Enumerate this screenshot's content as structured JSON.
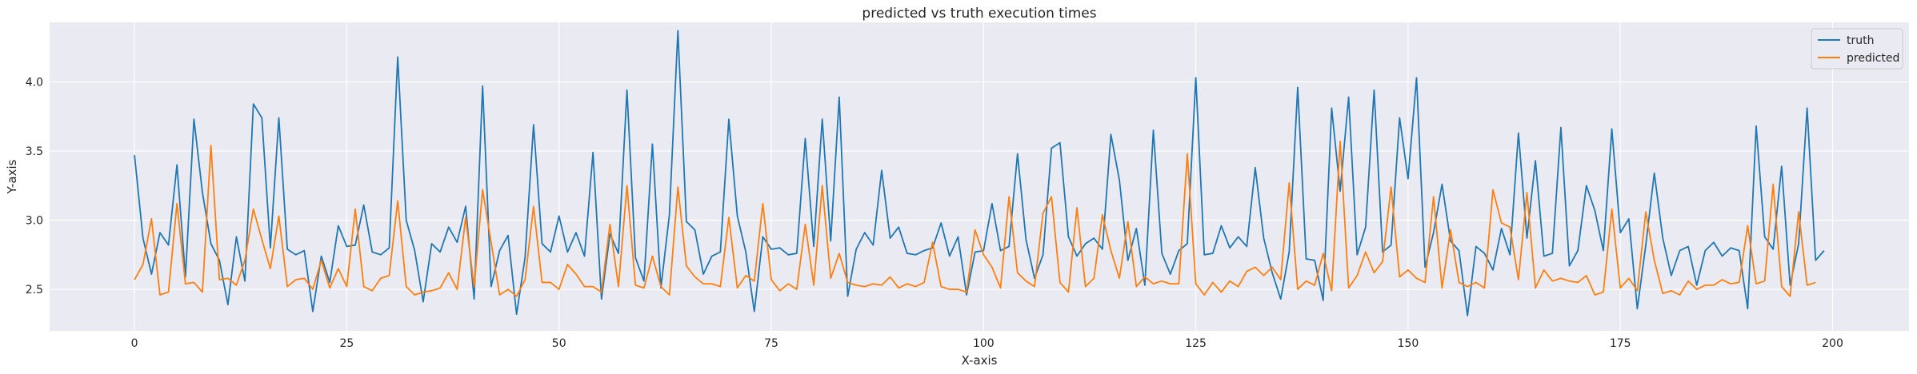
{
  "chart_data": {
    "type": "line",
    "title": "predicted vs truth execution times",
    "xlabel": "X-axis",
    "ylabel": "Y-axis",
    "xlim": [
      -10,
      209
    ],
    "ylim": [
      2.2,
      4.43
    ],
    "xticks": [
      0,
      25,
      50,
      75,
      100,
      125,
      150,
      175,
      200
    ],
    "yticks": [
      2.5,
      3.0,
      3.5,
      4.0
    ],
    "ytick_labels": [
      "2.5",
      "3.0",
      "3.5",
      "4.0"
    ],
    "grid": true,
    "legend_position": "top-right",
    "series": [
      {
        "name": "truth",
        "color": "#1f77b4",
        "values": [
          3.47,
          2.87,
          2.61,
          2.91,
          2.82,
          3.4,
          2.59,
          3.73,
          3.2,
          2.83,
          2.71,
          2.39,
          2.88,
          2.56,
          3.84,
          3.74,
          2.8,
          3.74,
          2.79,
          2.75,
          2.78,
          2.34,
          2.74,
          2.55,
          2.96,
          2.81,
          2.82,
          3.11,
          2.77,
          2.75,
          2.8,
          4.18,
          3.0,
          2.78,
          2.41,
          2.83,
          2.77,
          2.95,
          2.84,
          3.1,
          2.43,
          3.97,
          2.52,
          2.78,
          2.89,
          2.32,
          2.73,
          3.69,
          2.83,
          2.77,
          3.03,
          2.77,
          2.91,
          2.74,
          3.49,
          2.43,
          2.9,
          2.76,
          3.94,
          2.73,
          2.56,
          3.55,
          2.51,
          3.04,
          4.37,
          2.99,
          2.93,
          2.61,
          2.74,
          2.77,
          3.73,
          3.03,
          2.77,
          2.34,
          2.88,
          2.79,
          2.8,
          2.75,
          2.76,
          3.59,
          2.81,
          3.73,
          2.85,
          3.89,
          2.45,
          2.79,
          2.91,
          2.82,
          3.36,
          2.87,
          2.95,
          2.76,
          2.75,
          2.78,
          2.8,
          2.98,
          2.74,
          2.88,
          2.46,
          2.77,
          2.78,
          3.12,
          2.78,
          2.81,
          3.48,
          2.86,
          2.58,
          2.75,
          3.52,
          3.56,
          2.88,
          2.74,
          2.83,
          2.87,
          2.79,
          3.62,
          3.29,
          2.71,
          2.94,
          2.53,
          3.65,
          2.76,
          2.61,
          2.78,
          2.83,
          4.03,
          2.75,
          2.76,
          2.96,
          2.8,
          2.88,
          2.81,
          3.38,
          2.87,
          2.62,
          2.43,
          2.77,
          3.96,
          2.72,
          2.71,
          2.42,
          3.81,
          3.21,
          3.89,
          2.75,
          2.95,
          3.94,
          2.77,
          2.82,
          3.74,
          3.3,
          4.03,
          2.66,
          2.91,
          3.26,
          2.85,
          2.78,
          2.31,
          2.81,
          2.76,
          2.64,
          2.94,
          2.75,
          3.63,
          2.87,
          3.43,
          2.74,
          2.76,
          3.67,
          2.67,
          2.78,
          3.25,
          3.07,
          2.78,
          3.66,
          2.91,
          3.01,
          2.36,
          2.82,
          3.34,
          2.87,
          2.6,
          2.78,
          2.81,
          2.53,
          2.78,
          2.84,
          2.74,
          2.8,
          2.78,
          2.36,
          3.68,
          2.88,
          2.79,
          3.39,
          2.53,
          2.83,
          3.81,
          2.71,
          2.78
        ]
      },
      {
        "name": "predicted",
        "color": "#ff7f0e",
        "values": [
          2.57,
          2.68,
          3.01,
          2.46,
          2.48,
          3.12,
          2.54,
          2.55,
          2.48,
          3.54,
          2.57,
          2.58,
          2.53,
          2.71,
          3.08,
          2.86,
          2.65,
          3.03,
          2.52,
          2.57,
          2.58,
          2.5,
          2.71,
          2.51,
          2.65,
          2.52,
          3.08,
          2.52,
          2.49,
          2.58,
          2.6,
          3.14,
          2.52,
          2.46,
          2.48,
          2.49,
          2.51,
          2.62,
          2.5,
          3.02,
          2.52,
          3.22,
          2.84,
          2.46,
          2.5,
          2.45,
          2.57,
          3.1,
          2.55,
          2.55,
          2.5,
          2.68,
          2.61,
          2.52,
          2.52,
          2.48,
          2.97,
          2.52,
          3.25,
          2.53,
          2.51,
          2.74,
          2.52,
          2.46,
          3.24,
          2.67,
          2.59,
          2.54,
          2.54,
          2.52,
          3.02,
          2.51,
          2.6,
          2.56,
          3.12,
          2.57,
          2.49,
          2.54,
          2.5,
          2.97,
          2.53,
          3.25,
          2.58,
          2.76,
          2.55,
          2.53,
          2.52,
          2.54,
          2.53,
          2.59,
          2.51,
          2.54,
          2.52,
          2.55,
          2.84,
          2.52,
          2.5,
          2.5,
          2.48,
          2.93,
          2.75,
          2.66,
          2.51,
          3.17,
          2.62,
          2.56,
          2.52,
          3.05,
          3.17,
          2.55,
          2.48,
          3.09,
          2.52,
          2.58,
          3.04,
          2.78,
          2.58,
          2.99,
          2.52,
          2.59,
          2.54,
          2.56,
          2.54,
          2.54,
          3.48,
          2.54,
          2.46,
          2.55,
          2.48,
          2.56,
          2.52,
          2.63,
          2.66,
          2.6,
          2.66,
          2.57,
          3.27,
          2.5,
          2.56,
          2.53,
          2.76,
          2.49,
          3.57,
          2.51,
          2.6,
          2.77,
          2.62,
          2.7,
          3.24,
          2.59,
          2.64,
          2.58,
          2.55,
          3.17,
          2.51,
          2.93,
          2.55,
          2.52,
          2.55,
          2.51,
          3.22,
          2.98,
          2.95,
          2.57,
          3.2,
          2.51,
          2.64,
          2.56,
          2.58,
          2.56,
          2.55,
          2.6,
          2.46,
          2.48,
          3.08,
          2.51,
          2.58,
          2.49,
          3.06,
          2.71,
          2.47,
          2.49,
          2.46,
          2.56,
          2.5,
          2.53,
          2.53,
          2.57,
          2.54,
          2.55,
          2.96,
          2.54,
          2.56,
          3.26,
          2.52,
          2.45,
          3.06,
          2.53,
          2.55
        ]
      }
    ]
  }
}
